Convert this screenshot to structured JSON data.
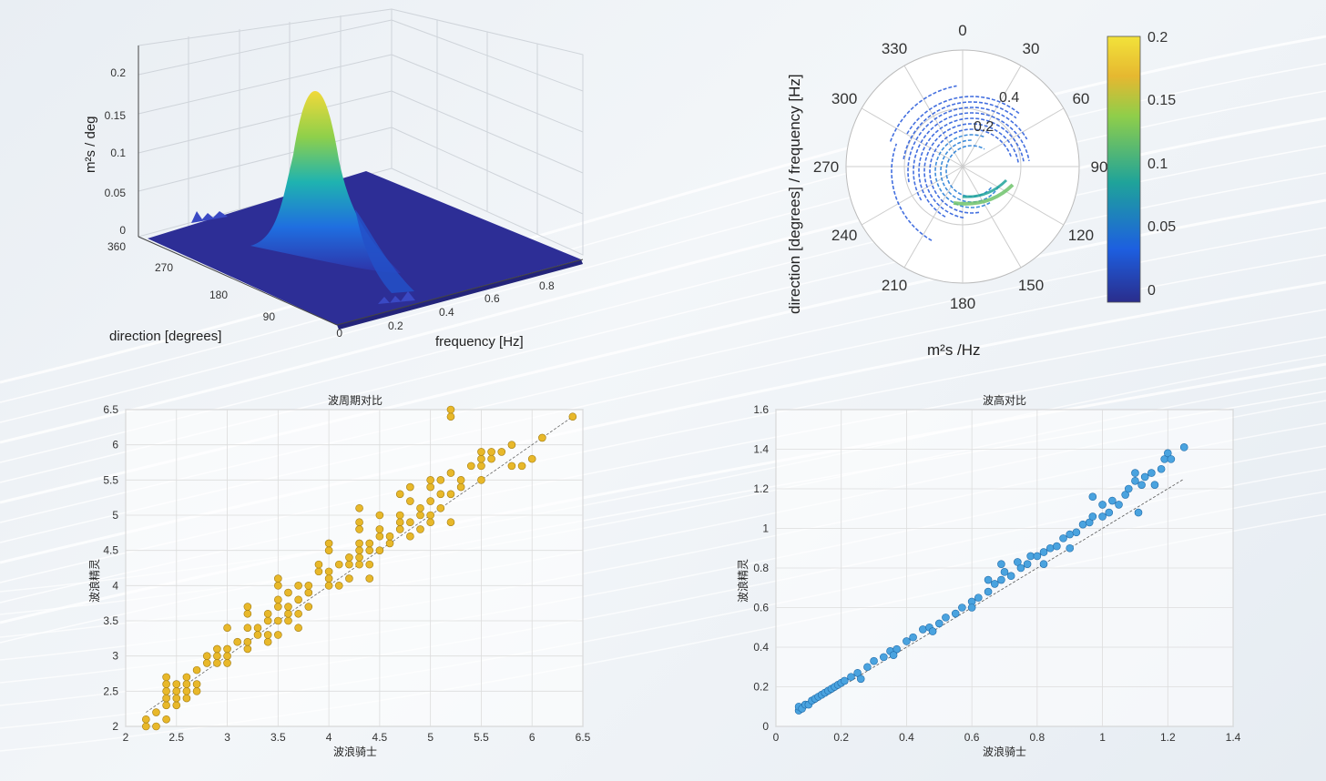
{
  "surface3d": {
    "zlabel": "m²s / deg",
    "xlabel": "direction [degrees]",
    "ylabel": "frequency [Hz]",
    "z_ticks": [
      "0",
      "0.05",
      "0.1",
      "0.15",
      "0.2"
    ],
    "dir_ticks": [
      "360",
      "270",
      "180",
      "90",
      "0"
    ],
    "freq_ticks": [
      "0.2",
      "0.4",
      "0.6",
      "0.8"
    ],
    "peak": {
      "direction": 180,
      "frequency": 0.1,
      "value": 0.2
    }
  },
  "polar": {
    "ylabel": "direction [degrees] / frequency [Hz]",
    "xlabel": "m²s /Hz",
    "angle_ticks": [
      "0",
      "30",
      "60",
      "90",
      "120",
      "150",
      "180",
      "210",
      "240",
      "270",
      "300",
      "330"
    ],
    "radius_ticks": [
      "0.2",
      "0.4"
    ],
    "colorbar_ticks": [
      "0.2",
      "0.15",
      "0.1",
      "0.05",
      "0"
    ],
    "colors": {
      "low": "#2a2d8c",
      "mid": "#1fa39a",
      "high": "#f2e23a"
    }
  },
  "chart_data": [
    {
      "type": "scatter",
      "title": "波周期对比",
      "xlabel": "波浪骑士",
      "ylabel": "波浪精灵",
      "xlim": [
        2,
        6.5
      ],
      "ylim": [
        2,
        6.5
      ],
      "x_ticks": [
        "2",
        "2.5",
        "3",
        "3.5",
        "4",
        "4.5",
        "5",
        "5.5",
        "6",
        "6.5"
      ],
      "y_ticks": [
        "2",
        "2.5",
        "3",
        "3.5",
        "4",
        "4.5",
        "5",
        "5.5",
        "6",
        "6.5"
      ],
      "color": "#e8b82a",
      "points": [
        [
          2.2,
          2.0
        ],
        [
          2.2,
          2.1
        ],
        [
          2.3,
          2.0
        ],
        [
          2.3,
          2.2
        ],
        [
          2.4,
          2.1
        ],
        [
          2.4,
          2.3
        ],
        [
          2.4,
          2.4
        ],
        [
          2.4,
          2.5
        ],
        [
          2.4,
          2.6
        ],
        [
          2.4,
          2.7
        ],
        [
          2.5,
          2.3
        ],
        [
          2.5,
          2.4
        ],
        [
          2.5,
          2.5
        ],
        [
          2.5,
          2.6
        ],
        [
          2.6,
          2.4
        ],
        [
          2.6,
          2.5
        ],
        [
          2.6,
          2.6
        ],
        [
          2.6,
          2.7
        ],
        [
          2.7,
          2.5
        ],
        [
          2.7,
          2.6
        ],
        [
          2.7,
          2.8
        ],
        [
          2.8,
          2.9
        ],
        [
          2.8,
          3.0
        ],
        [
          2.9,
          2.9
        ],
        [
          2.9,
          3.0
        ],
        [
          2.9,
          3.1
        ],
        [
          3.0,
          2.9
        ],
        [
          3.0,
          3.0
        ],
        [
          3.0,
          3.1
        ],
        [
          3.0,
          3.4
        ],
        [
          3.1,
          3.2
        ],
        [
          3.2,
          3.1
        ],
        [
          3.2,
          3.2
        ],
        [
          3.2,
          3.4
        ],
        [
          3.2,
          3.6
        ],
        [
          3.2,
          3.7
        ],
        [
          3.3,
          3.3
        ],
        [
          3.3,
          3.4
        ],
        [
          3.4,
          3.2
        ],
        [
          3.4,
          3.3
        ],
        [
          3.4,
          3.5
        ],
        [
          3.4,
          3.6
        ],
        [
          3.5,
          3.3
        ],
        [
          3.5,
          3.5
        ],
        [
          3.5,
          3.7
        ],
        [
          3.5,
          3.8
        ],
        [
          3.5,
          4.0
        ],
        [
          3.5,
          4.1
        ],
        [
          3.6,
          3.5
        ],
        [
          3.6,
          3.6
        ],
        [
          3.6,
          3.7
        ],
        [
          3.6,
          3.9
        ],
        [
          3.7,
          3.4
        ],
        [
          3.7,
          3.6
        ],
        [
          3.7,
          3.8
        ],
        [
          3.7,
          4.0
        ],
        [
          3.8,
          3.7
        ],
        [
          3.8,
          3.9
        ],
        [
          3.8,
          4.0
        ],
        [
          3.9,
          4.2
        ],
        [
          3.9,
          4.3
        ],
        [
          4.0,
          4.0
        ],
        [
          4.0,
          4.1
        ],
        [
          4.0,
          4.2
        ],
        [
          4.0,
          4.5
        ],
        [
          4.0,
          4.6
        ],
        [
          4.1,
          4.0
        ],
        [
          4.1,
          4.3
        ],
        [
          4.2,
          4.1
        ],
        [
          4.2,
          4.3
        ],
        [
          4.2,
          4.4
        ],
        [
          4.3,
          4.3
        ],
        [
          4.3,
          4.4
        ],
        [
          4.3,
          4.5
        ],
        [
          4.3,
          4.6
        ],
        [
          4.3,
          4.8
        ],
        [
          4.3,
          4.9
        ],
        [
          4.3,
          5.1
        ],
        [
          4.4,
          4.1
        ],
        [
          4.4,
          4.3
        ],
        [
          4.4,
          4.5
        ],
        [
          4.4,
          4.6
        ],
        [
          4.5,
          4.5
        ],
        [
          4.5,
          4.7
        ],
        [
          4.5,
          4.8
        ],
        [
          4.5,
          5.0
        ],
        [
          4.6,
          4.6
        ],
        [
          4.6,
          4.7
        ],
        [
          4.7,
          4.8
        ],
        [
          4.7,
          4.9
        ],
        [
          4.7,
          5.0
        ],
        [
          4.7,
          5.3
        ],
        [
          4.8,
          4.7
        ],
        [
          4.8,
          4.9
        ],
        [
          4.8,
          5.2
        ],
        [
          4.8,
          5.4
        ],
        [
          4.9,
          4.8
        ],
        [
          4.9,
          5.0
        ],
        [
          4.9,
          5.1
        ],
        [
          5.0,
          4.9
        ],
        [
          5.0,
          5.0
        ],
        [
          5.0,
          5.2
        ],
        [
          5.0,
          5.4
        ],
        [
          5.0,
          5.5
        ],
        [
          5.1,
          5.1
        ],
        [
          5.1,
          5.3
        ],
        [
          5.1,
          5.5
        ],
        [
          5.2,
          5.3
        ],
        [
          5.2,
          5.6
        ],
        [
          5.2,
          6.4
        ],
        [
          5.2,
          6.5
        ],
        [
          5.2,
          4.9
        ],
        [
          5.3,
          5.4
        ],
        [
          5.3,
          5.5
        ],
        [
          5.4,
          5.7
        ],
        [
          5.5,
          5.7
        ],
        [
          5.5,
          5.8
        ],
        [
          5.5,
          5.9
        ],
        [
          5.5,
          5.5
        ],
        [
          5.6,
          5.9
        ],
        [
          5.6,
          5.8
        ],
        [
          5.7,
          5.9
        ],
        [
          5.8,
          5.7
        ],
        [
          5.8,
          6.0
        ],
        [
          5.9,
          5.7
        ],
        [
          6.0,
          5.8
        ],
        [
          6.1,
          6.1
        ],
        [
          6.4,
          6.4
        ]
      ]
    },
    {
      "type": "scatter",
      "title": "波高对比",
      "xlabel": "波浪骑士",
      "ylabel": "波浪精灵",
      "xlim": [
        0,
        1.4
      ],
      "ylim": [
        0,
        1.6
      ],
      "x_ticks": [
        "0",
        "0.2",
        "0.4",
        "0.6",
        "0.8",
        "1",
        "1.2",
        "1.4"
      ],
      "y_ticks": [
        "0",
        "0.2",
        "0.4",
        "0.6",
        "0.8",
        "1",
        "1.2",
        "1.4",
        "1.6"
      ],
      "color": "#4aa3df",
      "points": [
        [
          0.07,
          0.08
        ],
        [
          0.07,
          0.1
        ],
        [
          0.08,
          0.09
        ],
        [
          0.09,
          0.11
        ],
        [
          0.1,
          0.11
        ],
        [
          0.11,
          0.13
        ],
        [
          0.12,
          0.14
        ],
        [
          0.13,
          0.15
        ],
        [
          0.14,
          0.16
        ],
        [
          0.15,
          0.17
        ],
        [
          0.16,
          0.18
        ],
        [
          0.17,
          0.19
        ],
        [
          0.18,
          0.2
        ],
        [
          0.19,
          0.21
        ],
        [
          0.2,
          0.22
        ],
        [
          0.21,
          0.23
        ],
        [
          0.23,
          0.25
        ],
        [
          0.25,
          0.27
        ],
        [
          0.28,
          0.3
        ],
        [
          0.3,
          0.33
        ],
        [
          0.33,
          0.35
        ],
        [
          0.35,
          0.38
        ],
        [
          0.37,
          0.39
        ],
        [
          0.4,
          0.43
        ],
        [
          0.42,
          0.45
        ],
        [
          0.45,
          0.49
        ],
        [
          0.47,
          0.5
        ],
        [
          0.5,
          0.52
        ],
        [
          0.52,
          0.55
        ],
        [
          0.55,
          0.57
        ],
        [
          0.57,
          0.6
        ],
        [
          0.6,
          0.63
        ],
        [
          0.62,
          0.65
        ],
        [
          0.65,
          0.68
        ],
        [
          0.67,
          0.72
        ],
        [
          0.69,
          0.74
        ],
        [
          0.7,
          0.78
        ],
        [
          0.72,
          0.76
        ],
        [
          0.74,
          0.83
        ],
        [
          0.75,
          0.8
        ],
        [
          0.77,
          0.82
        ],
        [
          0.78,
          0.86
        ],
        [
          0.8,
          0.86
        ],
        [
          0.82,
          0.88
        ],
        [
          0.84,
          0.9
        ],
        [
          0.86,
          0.91
        ],
        [
          0.88,
          0.95
        ],
        [
          0.9,
          0.97
        ],
        [
          0.92,
          0.98
        ],
        [
          0.94,
          1.02
        ],
        [
          0.96,
          1.03
        ],
        [
          0.97,
          1.06
        ],
        [
          1.0,
          1.06
        ],
        [
          1.02,
          1.08
        ],
        [
          1.03,
          1.14
        ],
        [
          1.05,
          1.12
        ],
        [
          1.07,
          1.17
        ],
        [
          1.08,
          1.2
        ],
        [
          1.1,
          1.24
        ],
        [
          1.1,
          1.28
        ],
        [
          1.12,
          1.22
        ],
        [
          1.13,
          1.26
        ],
        [
          1.15,
          1.28
        ],
        [
          1.16,
          1.22
        ],
        [
          1.18,
          1.3
        ],
        [
          1.19,
          1.35
        ],
        [
          1.2,
          1.38
        ],
        [
          1.21,
          1.35
        ],
        [
          1.25,
          1.41
        ],
        [
          0.69,
          0.82
        ],
        [
          0.97,
          1.16
        ],
        [
          1.11,
          1.08
        ],
        [
          0.82,
          0.82
        ],
        [
          0.65,
          0.74
        ],
        [
          0.48,
          0.48
        ],
        [
          0.36,
          0.36
        ],
        [
          0.26,
          0.24
        ],
        [
          0.6,
          0.6
        ],
        [
          0.9,
          0.9
        ],
        [
          1.0,
          1.12
        ]
      ]
    }
  ]
}
